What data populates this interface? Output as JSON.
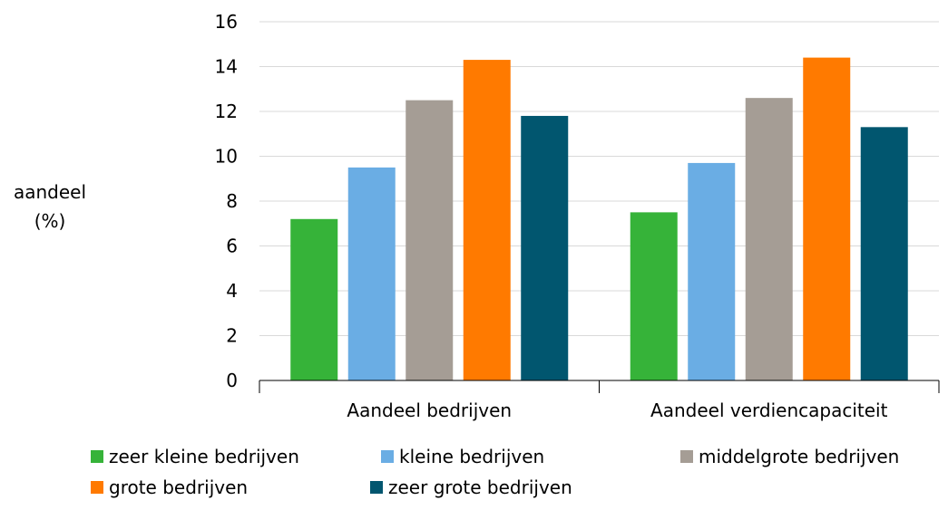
{
  "chart_data": {
    "type": "bar",
    "ylabel_lines": [
      "aandeel",
      "(%)"
    ],
    "categories": [
      "Aandeel bedrijven",
      "Aandeel verdiencapaciteit"
    ],
    "series": [
      {
        "name": "zeer kleine bedrijven",
        "color": "#36b339",
        "values": [
          7.2,
          7.5
        ]
      },
      {
        "name": "kleine bedrijven",
        "color": "#6aade4",
        "values": [
          9.5,
          9.7
        ]
      },
      {
        "name": "middelgrote bedrijven",
        "color": "#a59d95",
        "values": [
          12.5,
          12.6
        ]
      },
      {
        "name": "grote bedrijven",
        "color": "#ff7a00",
        "values": [
          14.3,
          14.4
        ]
      },
      {
        "name": "zeer grote bedrijven",
        "color": "#01566f",
        "values": [
          11.8,
          11.3
        ]
      }
    ],
    "ylim": [
      0,
      16
    ],
    "yticks": [
      "0",
      "2",
      "4",
      "6",
      "8",
      "10",
      "12",
      "14",
      "16"
    ],
    "grid": true,
    "legend_position": "bottom"
  }
}
